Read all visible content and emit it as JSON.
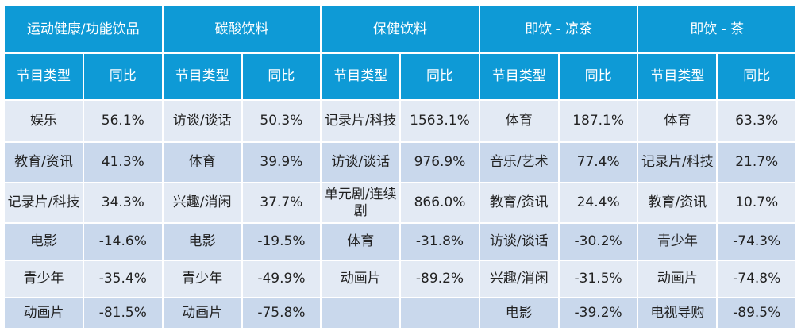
{
  "categories": [
    "运动健康/功能饮品",
    "碳酸饮料",
    "保健饮料",
    "即饮 - 凉茶",
    "即饮 - 茶"
  ],
  "sub_headers": {
    "type": "节目类型",
    "yoy": "同比"
  },
  "rows": [
    [
      [
        "娱乐",
        "56.1%"
      ],
      [
        "访谈/谈话",
        "50.3%"
      ],
      [
        "记录片/科技",
        "1563.1%"
      ],
      [
        "体育",
        "187.1%"
      ],
      [
        "体育",
        "63.3%"
      ]
    ],
    [
      [
        "教育/资讯",
        "41.3%"
      ],
      [
        "体育",
        "39.9%"
      ],
      [
        "访谈/谈话",
        "976.9%"
      ],
      [
        "音乐/艺术",
        "77.4%"
      ],
      [
        "记录片/科技",
        "21.7%"
      ]
    ],
    [
      [
        "记录片/科技",
        "34.3%"
      ],
      [
        "兴趣/消闲",
        "37.7%"
      ],
      [
        "单元剧/连续剧",
        "866.0%"
      ],
      [
        "教育/资讯",
        "24.4%"
      ],
      [
        "教育/资讯",
        "10.7%"
      ]
    ],
    [
      [
        "电影",
        "-14.6%"
      ],
      [
        "电影",
        "-19.5%"
      ],
      [
        "体育",
        "-31.8%"
      ],
      [
        "访谈/谈话",
        "-30.2%"
      ],
      [
        "青少年",
        "-74.3%"
      ]
    ],
    [
      [
        "青少年",
        "-35.4%"
      ],
      [
        "青少年",
        "-49.9%"
      ],
      [
        "动画片",
        "-89.2%"
      ],
      [
        "兴趣/消闲",
        "-31.5%"
      ],
      [
        "动画片",
        "-74.8%"
      ]
    ],
    [
      [
        "动画片",
        "-81.5%"
      ],
      [
        "动画片",
        "-75.8%"
      ],
      [
        "",
        ""
      ],
      [
        "电影",
        "-39.2%"
      ],
      [
        "电视导购",
        "-89.5%"
      ]
    ]
  ],
  "colors": {
    "header_bg": "#0e9ad6",
    "header_text": "#ffffff",
    "row_light": "#e3eaf4",
    "row_dark": "#c9d8ec",
    "cell_text": "#222222"
  }
}
